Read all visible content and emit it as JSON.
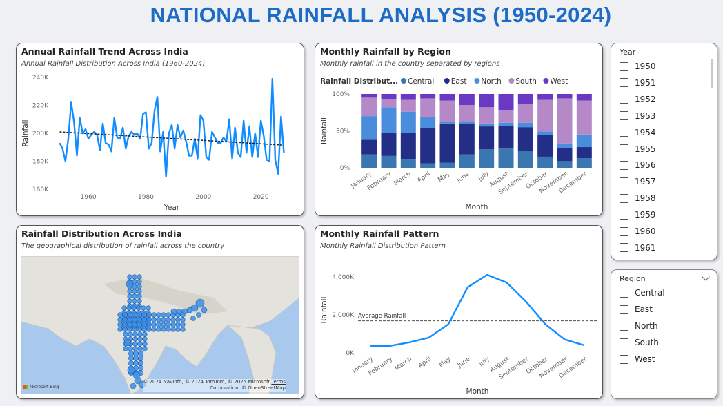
{
  "page": {
    "title": "NATIONAL RAINFALL ANALYSIS (1950-2024)"
  },
  "colors": {
    "accent": "#1e6bc6",
    "line": "#118dff",
    "trend": "#222222",
    "central": "#3a76b0",
    "east": "#232e86",
    "north": "#4a8ddc",
    "south": "#b589c8",
    "west": "#6939c4"
  },
  "trend_card": {
    "title": "Annual Rainfall Trend Across India",
    "subtitle": "Annual Rainfall Distribution Across India (1960-2024)"
  },
  "region_card": {
    "title": "Monthly Rainfall by Region",
    "subtitle": "Monthly rainfall in the country separated by regions",
    "legend_title": "Rainfall Distribut..."
  },
  "map_card": {
    "title": "Rainfall Distribution Across India",
    "subtitle": "The geographical distribution of rainfall across the country",
    "bing": "Microsoft Bing",
    "attribution_1": "© 2024 NavInfo, © 2024 TomTom, © 2025 Microsoft",
    "attribution_terms": "Terms",
    "attribution_2": "Corporation, © OpenStreetMap"
  },
  "pattern_card": {
    "title": "Monthly Rainfall Pattern",
    "subtitle": "Monthly Rainfall Distribution Pattern",
    "ref_label": "Average Rainfall"
  },
  "year_slicer": {
    "title": "Year",
    "items": [
      "1950",
      "1951",
      "1952",
      "1953",
      "1954",
      "1955",
      "1956",
      "1957",
      "1958",
      "1959",
      "1960",
      "1961"
    ]
  },
  "region_slicer": {
    "title": "Region",
    "items": [
      "Central",
      "East",
      "North",
      "South",
      "West"
    ]
  },
  "chart_data": [
    {
      "type": "line",
      "title": "Annual Rainfall Trend Across India",
      "xlabel": "Year",
      "ylabel": "Rainfall",
      "xlim": [
        1947,
        2031
      ],
      "ylim": [
        160000,
        240000
      ],
      "xticks": [
        "1960",
        "1980",
        "2000",
        "2020"
      ],
      "yticks": [
        "160K",
        "180K",
        "200K",
        "220K",
        "240K"
      ],
      "x": [
        1950,
        1951,
        1952,
        1953,
        1954,
        1955,
        1956,
        1957,
        1958,
        1959,
        1960,
        1961,
        1962,
        1963,
        1964,
        1965,
        1966,
        1967,
        1968,
        1969,
        1970,
        1971,
        1972,
        1973,
        1974,
        1975,
        1976,
        1977,
        1978,
        1979,
        1980,
        1981,
        1982,
        1983,
        1984,
        1985,
        1986,
        1987,
        1988,
        1989,
        1990,
        1991,
        1992,
        1993,
        1994,
        1995,
        1996,
        1997,
        1998,
        1999,
        2000,
        2001,
        2002,
        2003,
        2004,
        2005,
        2006,
        2007,
        2008,
        2009,
        2010,
        2011,
        2012,
        2013,
        2014,
        2015,
        2016,
        2017,
        2018,
        2019,
        2020,
        2021,
        2022,
        2023,
        2024,
        2025,
        2026,
        2027,
        2028
      ],
      "values": [
        193000,
        189000,
        180000,
        196000,
        222000,
        208000,
        184000,
        211000,
        200000,
        203000,
        196000,
        199000,
        201000,
        199000,
        188000,
        207000,
        193000,
        192000,
        187000,
        211000,
        197000,
        196000,
        204000,
        189000,
        198000,
        201000,
        199000,
        200000,
        196000,
        214000,
        215000,
        189000,
        193000,
        216000,
        226000,
        187000,
        201000,
        169000,
        200000,
        206000,
        189000,
        206000,
        197000,
        202000,
        194000,
        184000,
        184000,
        196000,
        182000,
        213000,
        209000,
        183000,
        181000,
        201000,
        197000,
        193000,
        193000,
        197000,
        194000,
        210000,
        182000,
        204000,
        186000,
        183000,
        209000,
        186000,
        205000,
        183000,
        200000,
        183000,
        209000,
        198000,
        181000,
        180000,
        239000,
        181000,
        171000,
        212000,
        186000
      ],
      "trend": {
        "x": [
          1950,
          2028
        ],
        "values": [
          201000,
          191500
        ]
      }
    },
    {
      "type": "bar",
      "stacked": "percent",
      "title": "Monthly Rainfall by Region",
      "xlabel": "Month",
      "ylabel": "Rainfall",
      "yticks": [
        "0%",
        "50%",
        "100%"
      ],
      "categories": [
        "January",
        "February",
        "March",
        "April",
        "May",
        "June",
        "July",
        "August",
        "September",
        "October",
        "November",
        "December"
      ],
      "series": [
        {
          "name": "Central",
          "values": [
            18,
            16,
            12,
            6,
            7,
            18,
            25,
            26,
            23,
            15,
            9,
            13
          ]
        },
        {
          "name": "East",
          "values": [
            20,
            31,
            35,
            48,
            53,
            41,
            31,
            31,
            32,
            29,
            18,
            15
          ]
        },
        {
          "name": "North",
          "values": [
            32,
            35,
            29,
            15,
            2,
            4,
            4,
            4,
            6,
            5,
            6,
            17
          ]
        },
        {
          "name": "South",
          "values": [
            25,
            11,
            16,
            25,
            29,
            22,
            22,
            17,
            25,
            43,
            61,
            46
          ]
        },
        {
          "name": "West",
          "values": [
            5,
            7,
            8,
            6,
            9,
            15,
            18,
            22,
            14,
            8,
            6,
            9
          ]
        }
      ]
    },
    {
      "type": "map",
      "title": "Rainfall Distribution Across India"
    },
    {
      "type": "line",
      "title": "Monthly Rainfall Pattern",
      "xlabel": "Month",
      "ylabel": "Rainfall",
      "ylim": [
        0,
        4500000
      ],
      "yticks": [
        "0K",
        "2,000K",
        "4,000K"
      ],
      "categories": [
        "January",
        "February",
        "March",
        "April",
        "May",
        "June",
        "July",
        "August",
        "September",
        "October",
        "November",
        "December"
      ],
      "values": [
        370000,
        370000,
        550000,
        800000,
        1500000,
        3450000,
        4100000,
        3700000,
        2700000,
        1500000,
        700000,
        400000
      ],
      "reference_line": {
        "label": "Average Rainfall",
        "value": 1700000
      }
    }
  ]
}
